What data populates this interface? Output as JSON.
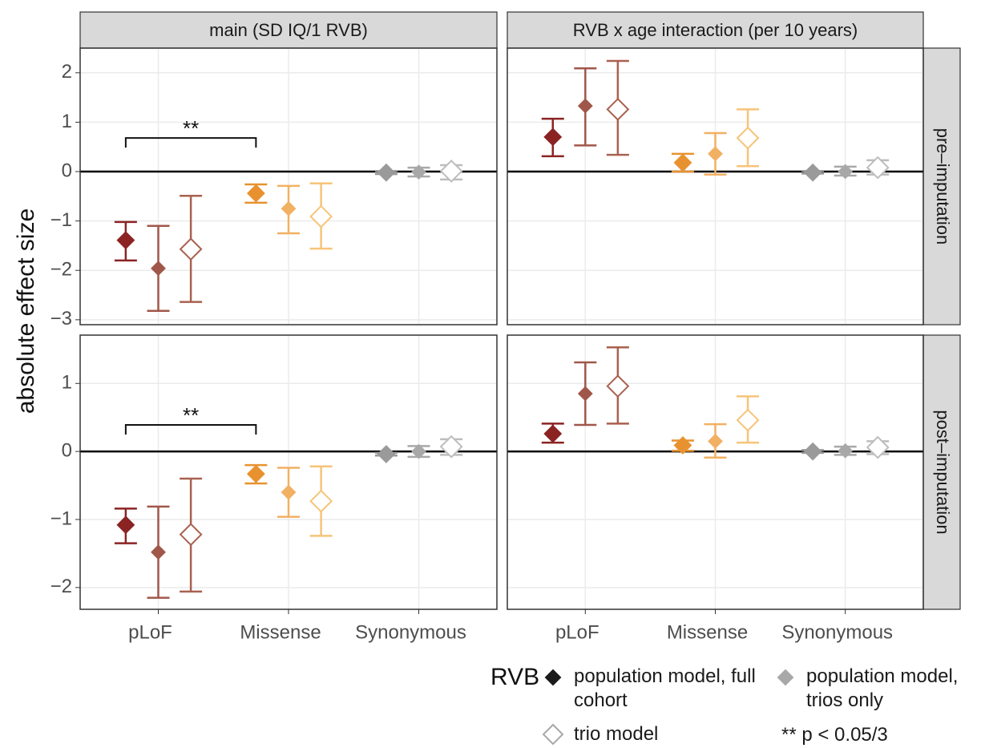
{
  "chart_data": {
    "type": "pointrange",
    "ylabel": "absolute effect size",
    "categories": [
      "pLoF",
      "Missense",
      "Synonymous"
    ],
    "columns": [
      "main (SD IQ/1 RVB)",
      "RVB x age interaction (per 10 years)"
    ],
    "hline": 0,
    "grid": true,
    "rows": [
      {
        "label": "pre–imputation",
        "ylim": [
          -3.1,
          2.5
        ],
        "yticks": [
          {
            "value": -3,
            "label": "−3"
          },
          {
            "value": -2,
            "label": "−2"
          },
          {
            "value": -1,
            "label": "−1"
          },
          0,
          1,
          2
        ]
      },
      {
        "label": "post–imputation",
        "ylim": [
          -2.32,
          1.71
        ],
        "yticks": [
          {
            "value": -2,
            "label": "−2"
          },
          {
            "value": -1,
            "label": "−1"
          },
          0,
          1
        ]
      }
    ],
    "series": [
      {
        "name": "population model, full cohort",
        "filled": true,
        "legend_color": "#1a1a1a",
        "colors": [
          "#8b2323",
          "#e8922f",
          "#9a9a9a"
        ]
      },
      {
        "name": "population model, trios only",
        "filled": true,
        "legend_color": "#a8a8a8",
        "colors": [
          "#a0574a",
          "#f2b063",
          "#a8a8a8"
        ]
      },
      {
        "name": "trio model",
        "filled": false,
        "legend_color": "#a8a8a8",
        "colors": [
          "#a9614f",
          "#f6c479",
          "#bdbdbd"
        ]
      }
    ],
    "legend_title": "RVB",
    "legend_note": "** p < 0.05/3",
    "panels": [
      [
        {
          "series": [
            {
              "values": [
                -1.39,
                -0.44,
                -0.02
              ],
              "lower": [
                -1.8,
                -0.63,
                -0.05
              ],
              "upper": [
                -1.02,
                -0.26,
                0.01
              ]
            },
            {
              "values": [
                -1.96,
                -0.75,
                -0.01
              ],
              "lower": [
                -2.82,
                -1.25,
                -0.1
              ],
              "upper": [
                -1.1,
                -0.29,
                0.08
              ]
            },
            {
              "values": [
                -1.57,
                -0.91,
                0.01
              ],
              "lower": [
                -2.64,
                -1.56,
                -0.16
              ],
              "upper": [
                -0.49,
                -0.24,
                0.13
              ]
            }
          ],
          "annotation": {
            "text": "**",
            "y": 0.68
          }
        },
        {
          "series": [
            {
              "values": [
                0.7,
                0.18,
                -0.02
              ],
              "lower": [
                0.31,
                0,
                -0.04
              ],
              "upper": [
                1.07,
                0.36,
                0.01
              ]
            },
            {
              "values": [
                1.33,
                0.36,
                0.0
              ],
              "lower": [
                0.53,
                -0.06,
                -0.08
              ],
              "upper": [
                2.09,
                0.78,
                0.1
              ]
            },
            {
              "values": [
                1.26,
                0.68,
                0.08
              ],
              "lower": [
                0.34,
                0.11,
                -0.06
              ],
              "upper": [
                2.24,
                1.26,
                0.23
              ]
            }
          ]
        }
      ],
      [
        {
          "series": [
            {
              "values": [
                -1.08,
                -0.33,
                -0.04
              ],
              "lower": [
                -1.35,
                -0.47,
                -0.06
              ],
              "upper": [
                -0.84,
                -0.2,
                -0.02
              ]
            },
            {
              "values": [
                -1.48,
                -0.6,
                0.0
              ],
              "lower": [
                -2.15,
                -0.96,
                -0.08
              ],
              "upper": [
                -0.81,
                -0.24,
                0.08
              ]
            },
            {
              "values": [
                -1.22,
                -0.73,
                0.07
              ],
              "lower": [
                -2.06,
                -1.24,
                -0.05
              ],
              "upper": [
                -0.4,
                -0.22,
                0.18
              ]
            }
          ],
          "annotation": {
            "text": "**",
            "y": 0.39
          }
        },
        {
          "series": [
            {
              "values": [
                0.26,
                0.09,
                0.0
              ],
              "lower": [
                0.13,
                0.01,
                -0.02
              ],
              "upper": [
                0.41,
                0.16,
                0.02
              ]
            },
            {
              "values": [
                0.85,
                0.15,
                0.01
              ],
              "lower": [
                0.39,
                -0.09,
                -0.05
              ],
              "upper": [
                1.31,
                0.4,
                0.07
              ]
            },
            {
              "values": [
                0.96,
                0.46,
                0.06
              ],
              "lower": [
                0.41,
                0.13,
                -0.04
              ],
              "upper": [
                1.53,
                0.81,
                0.15
              ]
            }
          ]
        }
      ]
    ]
  }
}
